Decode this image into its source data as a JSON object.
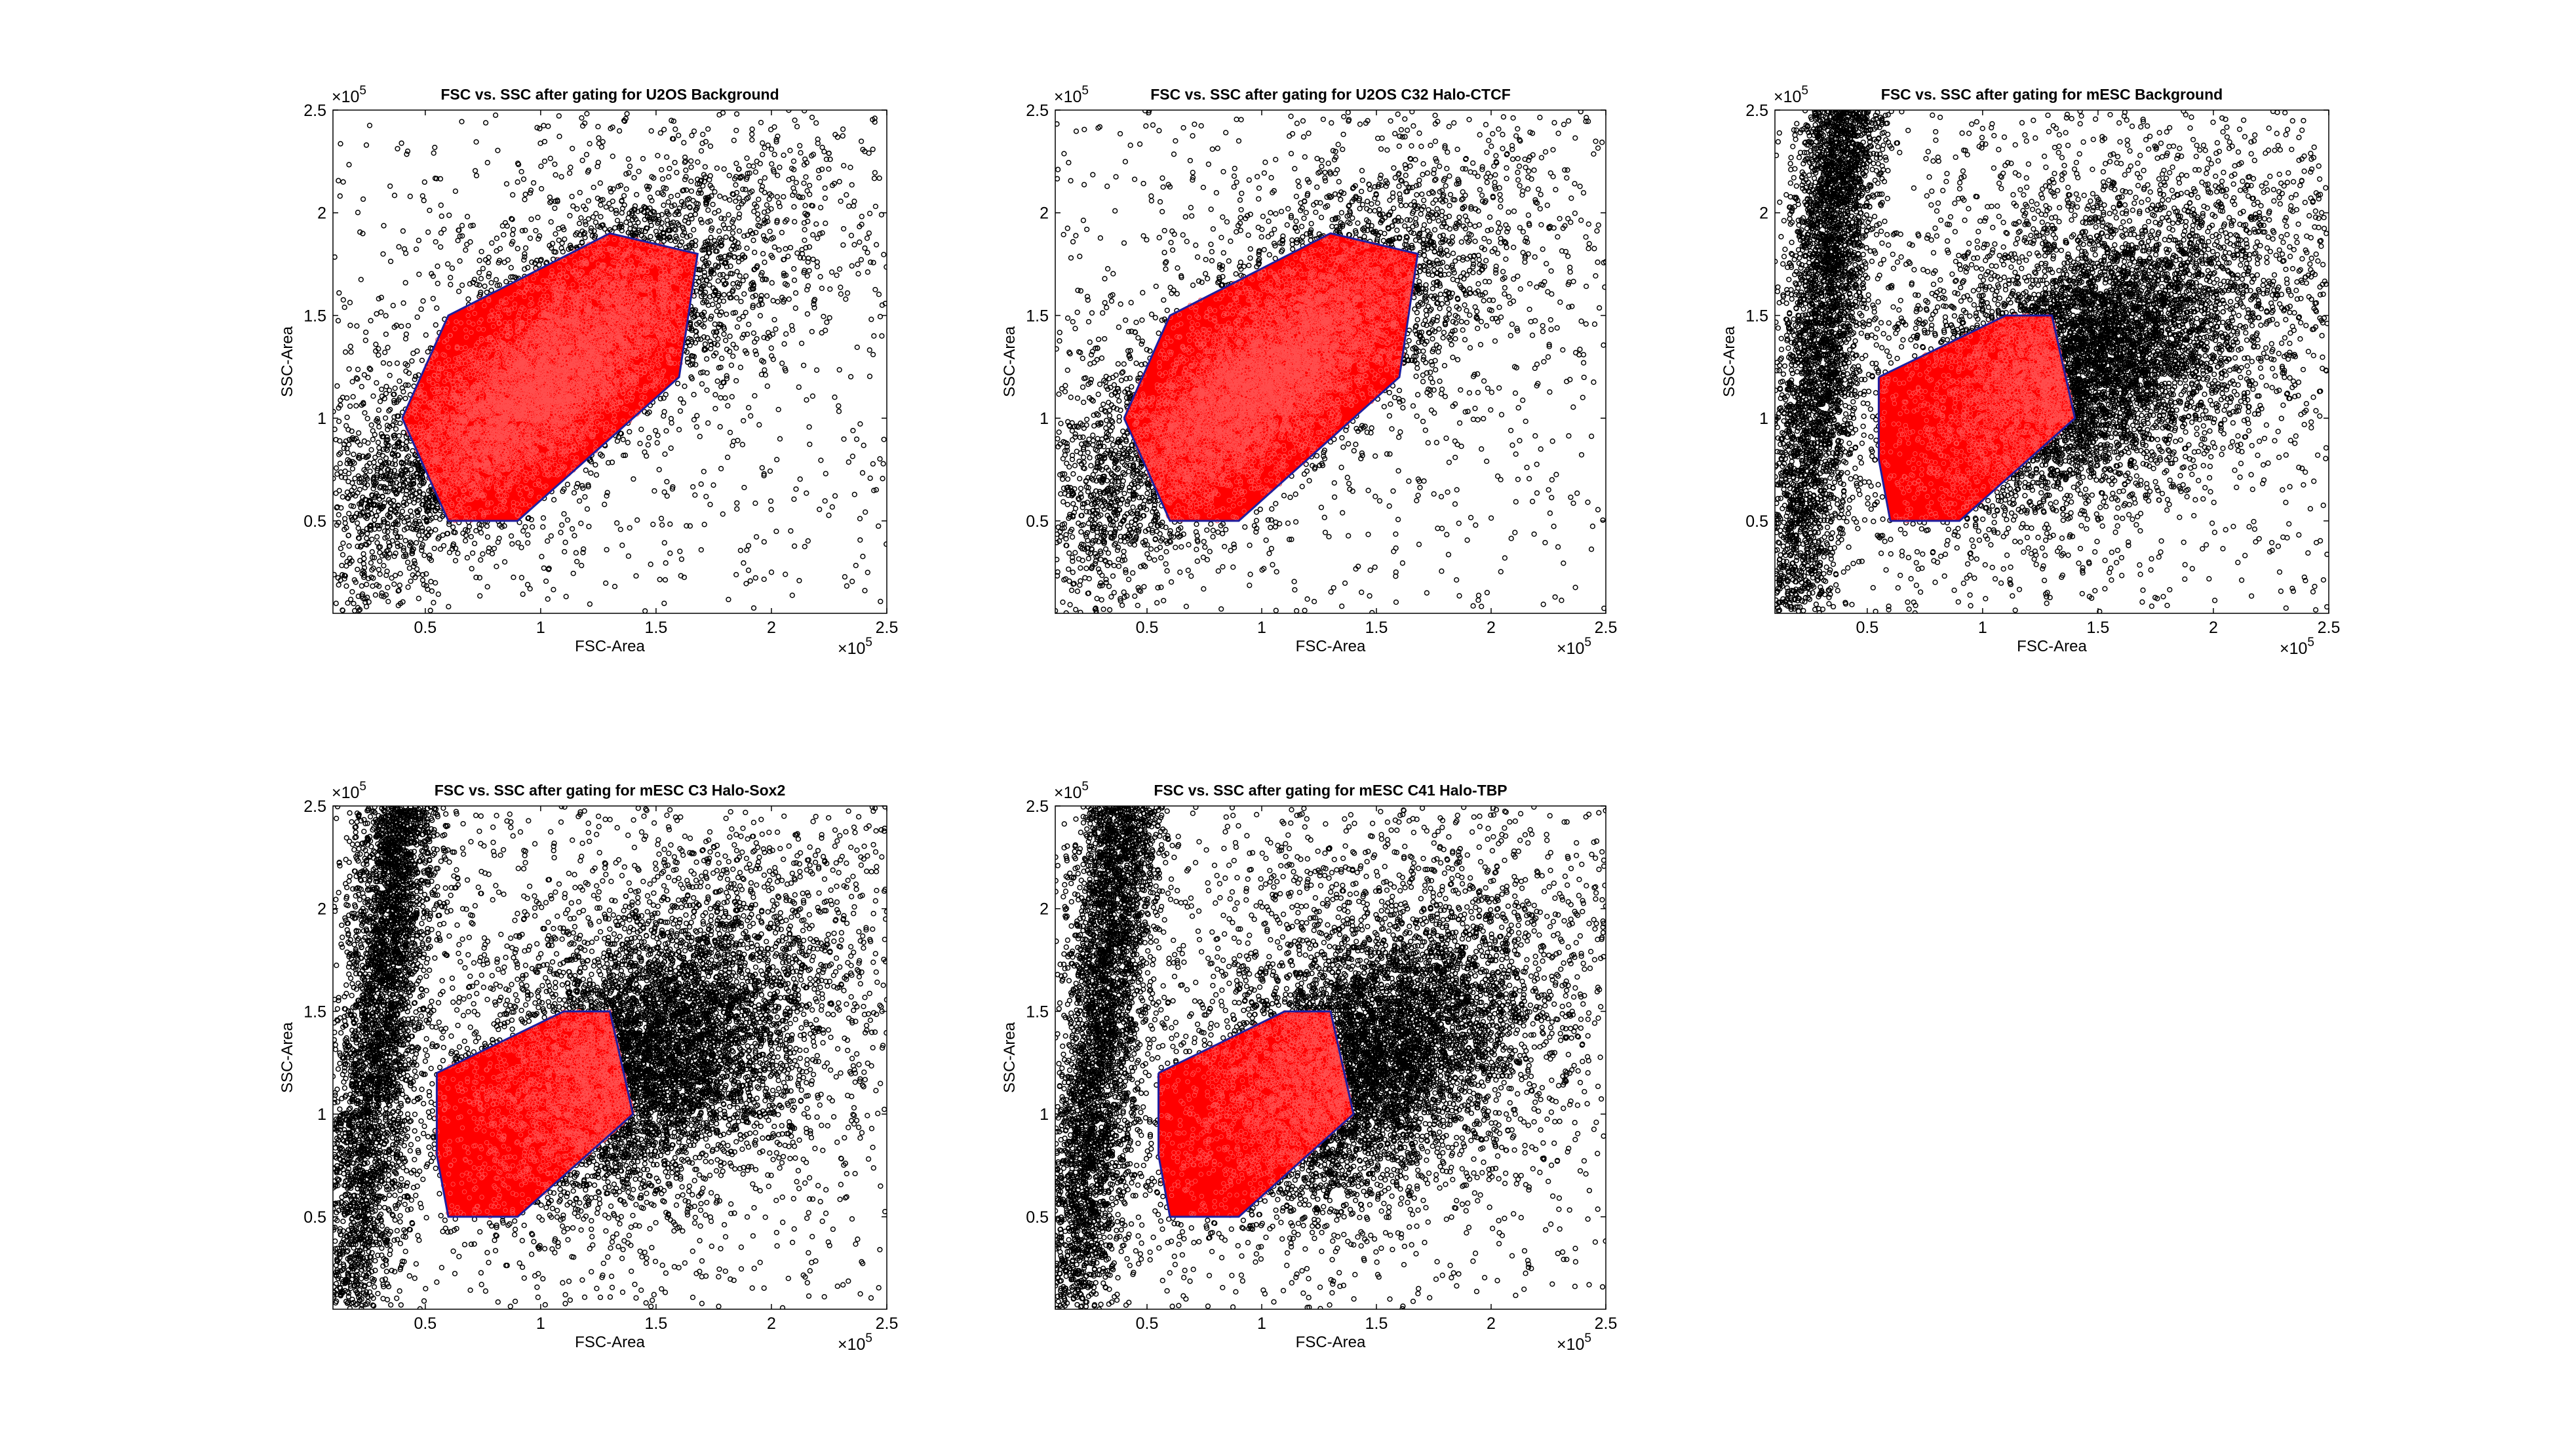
{
  "figure": {
    "background": "#ffffff",
    "colors": {
      "points": "#000000",
      "gated_points": "#ff0000",
      "gate_outline": "#1f1f9f"
    }
  },
  "chart_data": [
    {
      "type": "scatter",
      "title": "FSC vs. SSC after gating for U2OS Background",
      "xlabel": "FSC-Area",
      "ylabel": "SSC-Area",
      "xlim": [
        10000,
        250000
      ],
      "ylim": [
        5000,
        250000
      ],
      "x_ticks": [
        0.5,
        1,
        1.5,
        2,
        2.5
      ],
      "y_ticks": [
        0.5,
        1,
        1.5,
        2,
        2.5
      ],
      "tick_multiplier": "×10^5",
      "marker": "open-circle",
      "population": "u2os",
      "gate_polygon": [
        [
          40000,
          100000
        ],
        [
          60000,
          150000
        ],
        [
          130000,
          190000
        ],
        [
          168000,
          180000
        ],
        [
          160000,
          120000
        ],
        [
          90000,
          50000
        ],
        [
          60000,
          50000
        ],
        [
          40000,
          100000
        ]
      ],
      "series": [
        {
          "name": "",
          "role": "all events",
          "color": "#000000"
        },
        {
          "name": "",
          "role": "gated events",
          "color": "#ff0000"
        }
      ]
    },
    {
      "type": "scatter",
      "title": "FSC vs. SSC after gating for U2OS C32 Halo-CTCF",
      "xlabel": "FSC-Area",
      "ylabel": "SSC-Area",
      "xlim": [
        10000,
        250000
      ],
      "ylim": [
        5000,
        250000
      ],
      "x_ticks": [
        0.5,
        1,
        1.5,
        2,
        2.5
      ],
      "y_ticks": [
        0.5,
        1,
        1.5,
        2,
        2.5
      ],
      "tick_multiplier": "×10^5",
      "marker": "open-circle",
      "population": "u2os",
      "gate_polygon": [
        [
          40000,
          100000
        ],
        [
          60000,
          150000
        ],
        [
          130000,
          190000
        ],
        [
          168000,
          180000
        ],
        [
          160000,
          120000
        ],
        [
          90000,
          50000
        ],
        [
          60000,
          50000
        ],
        [
          40000,
          100000
        ]
      ],
      "series": [
        {
          "name": "",
          "role": "all events",
          "color": "#000000"
        },
        {
          "name": "",
          "role": "gated events",
          "color": "#ff0000"
        }
      ]
    },
    {
      "type": "scatter",
      "title": "FSC vs. SSC after gating for mESC Background",
      "xlabel": "FSC-Area",
      "ylabel": "SSC-Area",
      "xlim": [
        10000,
        250000
      ],
      "ylim": [
        5000,
        250000
      ],
      "x_ticks": [
        0.5,
        1,
        1.5,
        2,
        2.5
      ],
      "y_ticks": [
        0.5,
        1,
        1.5,
        2,
        2.5
      ],
      "tick_multiplier": "×10^5",
      "marker": "open-circle",
      "population": "mesc",
      "gate_polygon": [
        [
          55000,
          120000
        ],
        [
          110000,
          150000
        ],
        [
          130000,
          150000
        ],
        [
          140000,
          100000
        ],
        [
          90000,
          50000
        ],
        [
          60000,
          50000
        ],
        [
          55000,
          80000
        ],
        [
          55000,
          120000
        ]
      ],
      "series": [
        {
          "name": "",
          "role": "all events",
          "color": "#000000"
        },
        {
          "name": "",
          "role": "gated events",
          "color": "#ff0000"
        }
      ]
    },
    {
      "type": "scatter",
      "title": "FSC vs. SSC after gating for mESC C3 Halo-Sox2",
      "xlabel": "FSC-Area",
      "ylabel": "SSC-Area",
      "xlim": [
        10000,
        250000
      ],
      "ylim": [
        5000,
        250000
      ],
      "x_ticks": [
        0.5,
        1,
        1.5,
        2,
        2.5
      ],
      "y_ticks": [
        0.5,
        1,
        1.5,
        2,
        2.5
      ],
      "tick_multiplier": "×10^5",
      "marker": "open-circle",
      "population": "mesc",
      "gate_polygon": [
        [
          55000,
          120000
        ],
        [
          110000,
          150000
        ],
        [
          130000,
          150000
        ],
        [
          140000,
          100000
        ],
        [
          90000,
          50000
        ],
        [
          60000,
          50000
        ],
        [
          55000,
          80000
        ],
        [
          55000,
          120000
        ]
      ],
      "series": [
        {
          "name": "",
          "role": "all events",
          "color": "#000000"
        },
        {
          "name": "",
          "role": "gated events",
          "color": "#ff0000"
        }
      ]
    },
    {
      "type": "scatter",
      "title": "FSC vs. SSC after gating for mESC C41 Halo-TBP",
      "xlabel": "FSC-Area",
      "ylabel": "SSC-Area",
      "xlim": [
        10000,
        250000
      ],
      "ylim": [
        5000,
        250000
      ],
      "x_ticks": [
        0.5,
        1,
        1.5,
        2,
        2.5
      ],
      "y_ticks": [
        0.5,
        1,
        1.5,
        2,
        2.5
      ],
      "tick_multiplier": "×10^5",
      "marker": "open-circle",
      "population": "mesc",
      "gate_polygon": [
        [
          55000,
          120000
        ],
        [
          110000,
          150000
        ],
        [
          130000,
          150000
        ],
        [
          140000,
          100000
        ],
        [
          90000,
          50000
        ],
        [
          60000,
          50000
        ],
        [
          55000,
          80000
        ],
        [
          55000,
          120000
        ]
      ],
      "series": [
        {
          "name": "",
          "role": "all events",
          "color": "#000000"
        },
        {
          "name": "",
          "role": "gated events",
          "color": "#ff0000"
        }
      ]
    }
  ]
}
